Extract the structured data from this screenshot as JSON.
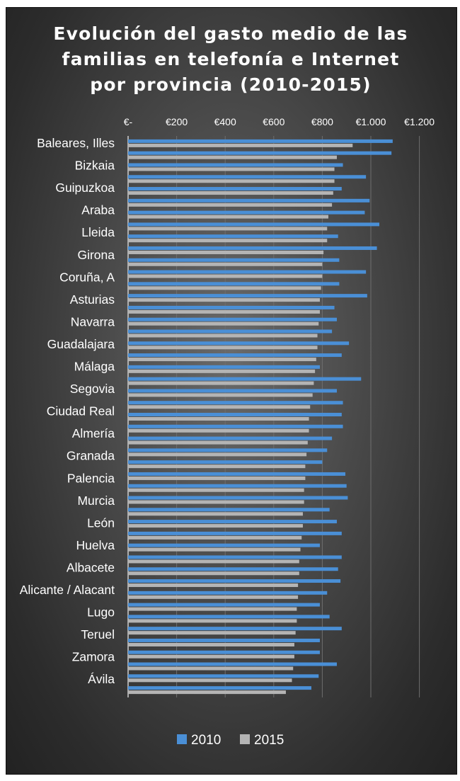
{
  "chart_data": {
    "type": "bar",
    "orientation": "horizontal",
    "title": "Evolución del gasto medio de las\nfamilias en telefonía e Internet\npor provincia (2010-2015)",
    "x_ticks": [
      "€-",
      "€200",
      "€400",
      "€600",
      "€800",
      "€1.000",
      "€1.200"
    ],
    "xlim": [
      0,
      1200
    ],
    "grid": true,
    "legend_position": "bottom",
    "labeled_categories": [
      "Baleares, Illes",
      "Bizkaia",
      "Guipuzkoa",
      "Araba",
      "Lleida",
      "Girona",
      "Coruña, A",
      "Asturias",
      "Navarra",
      "Guadalajara",
      "Málaga",
      "Segovia",
      "Ciudad Real",
      "Almería",
      "Granada",
      "Palencia",
      "Murcia",
      "León",
      "Huelva",
      "Albacete",
      "Alicante / Alacant",
      "Lugo",
      "Teruel",
      "Zamora",
      "Ávila"
    ],
    "series": [
      {
        "name": "2010",
        "color": "#4a8fd6",
        "values": [
          1090,
          1085,
          885,
          980,
          880,
          995,
          975,
          1035,
          865,
          1025,
          870,
          980,
          870,
          985,
          850,
          860,
          840,
          910,
          880,
          790,
          960,
          860,
          885,
          880,
          885,
          840,
          820,
          800,
          895,
          900,
          905,
          830,
          860,
          880,
          790,
          880,
          865,
          875,
          820,
          790,
          830,
          880,
          790,
          790,
          860,
          785,
          755
        ]
      },
      {
        "name": "2015",
        "color": "#b4b4b4",
        "values": [
          925,
          860,
          850,
          850,
          845,
          840,
          825,
          820,
          820,
          805,
          800,
          800,
          795,
          790,
          790,
          785,
          780,
          780,
          775,
          770,
          765,
          760,
          750,
          745,
          745,
          740,
          735,
          730,
          730,
          725,
          725,
          720,
          720,
          715,
          710,
          705,
          705,
          700,
          700,
          695,
          695,
          690,
          685,
          685,
          680,
          675,
          650
        ]
      }
    ]
  },
  "legend": {
    "label_2010": "2010",
    "label_2015": "2015"
  }
}
